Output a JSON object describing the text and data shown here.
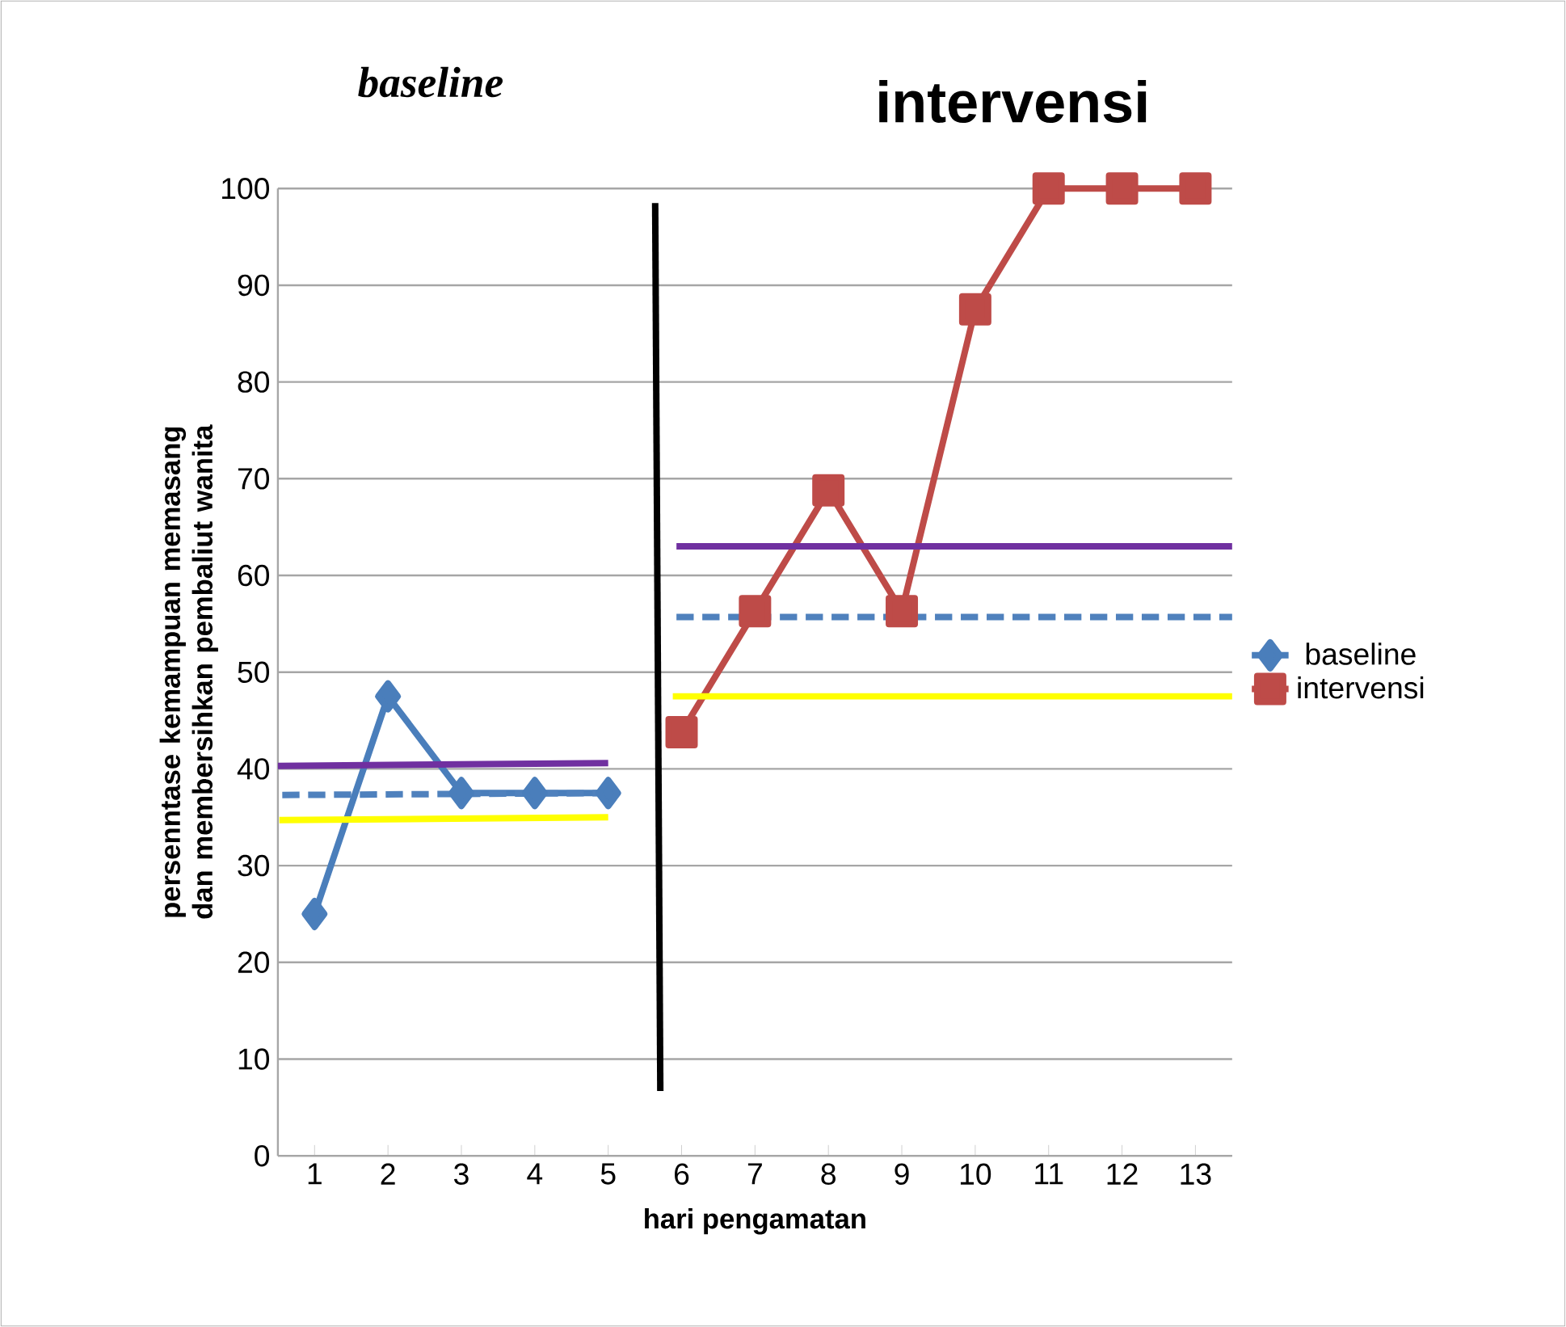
{
  "chart_data": {
    "type": "line",
    "xlabel": "hari pengamatan",
    "ylabel": "persenntase kemampuan memasang dan membersihkan pembaliut wanita",
    "annotations": [
      "baseline",
      "intervensi"
    ],
    "xlim": [
      0.5,
      13.5
    ],
    "xticks": [
      1,
      2,
      3,
      4,
      5,
      6,
      7,
      8,
      9,
      10,
      11,
      12,
      13
    ],
    "ylim": [
      0,
      100
    ],
    "yticks": [
      0,
      10,
      20,
      30,
      40,
      50,
      60,
      70,
      80,
      90,
      100
    ],
    "grid": "y",
    "legend": "right",
    "series": [
      {
        "name": "baseline",
        "color": "#4a7ebb",
        "marker": "diamond",
        "x": [
          1,
          2,
          3,
          4,
          5
        ],
        "values": [
          25,
          47.5,
          37.5,
          37.5,
          37.5
        ]
      },
      {
        "name": "intervensi",
        "color": "#be4b48",
        "marker": "square",
        "x": [
          6,
          7,
          8,
          9,
          10,
          11,
          12,
          13
        ],
        "values": [
          43.8,
          56.3,
          68.8,
          56.3,
          87.5,
          100,
          100,
          100
        ]
      },
      {
        "color": "#7030a0",
        "x": [
          0.5,
          5
        ],
        "values": [
          40.3,
          40.6
        ]
      },
      {
        "color": "#4f81bd",
        "line_style": "dashed",
        "x": [
          0.56,
          5
        ],
        "values": [
          37.3,
          37.5
        ]
      },
      {
        "color": "#ffff00",
        "x": [
          0.52,
          5
        ],
        "values": [
          34.7,
          35
        ]
      },
      {
        "color": "#7030a0",
        "x": [
          5.93,
          13.5
        ],
        "values": [
          63,
          63
        ]
      },
      {
        "color": "#4f81bd",
        "line_style": "dashed",
        "x": [
          5.93,
          13.5
        ],
        "values": [
          55.7,
          55.7
        ]
      },
      {
        "color": "#ffff00",
        "x": [
          5.88,
          13.5
        ],
        "values": [
          47.5,
          47.5
        ]
      },
      {
        "color": "#000000",
        "x": [
          5.64,
          5.71
        ],
        "values": [
          98.5,
          6.7
        ]
      }
    ]
  }
}
